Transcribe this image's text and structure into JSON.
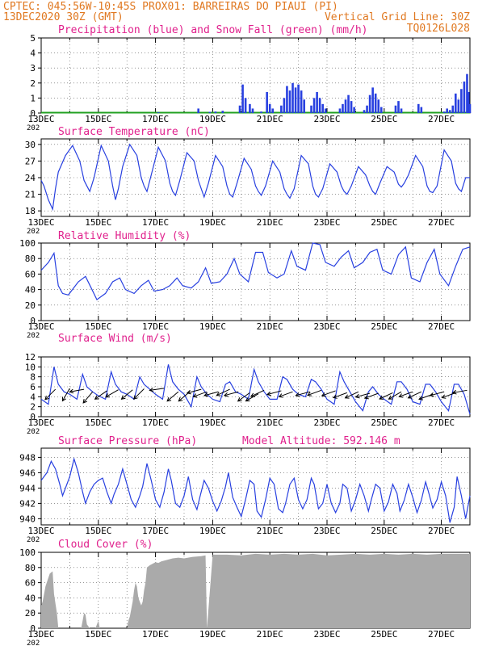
{
  "header": {
    "line1": "CPTEC:   045:56W-10:45S  PROX01: BARREIRAS DO PIAUI (PI)",
    "line2_left": "13DEC2020 30Z (GMT)",
    "line2_right": "Vertical Grid Line: 30Z",
    "code": "TQ0126L028"
  },
  "colors": {
    "header": "#e07820",
    "title": "#e0208c",
    "line": "#2840e0",
    "precip": "#2840e0",
    "snow": "#20a020",
    "cloud": "#aaaaaa",
    "wind_arrow": "#000000"
  },
  "x_labels": [
    "13DEC",
    "15DEC",
    "17DEC",
    "19DEC",
    "21DEC",
    "23DEC",
    "25DEC",
    "27DEC"
  ],
  "x_sublabel": "202",
  "chart_data": [
    {
      "type": "bar",
      "title": "Precipitation (blue) and Snow Fall (green) (mm/h)",
      "ylim": [
        0,
        5
      ],
      "yticks": [
        0,
        1,
        2,
        3,
        4,
        5
      ],
      "xlim_days": [
        13,
        28
      ],
      "bars": [
        [
          17.1,
          0.05
        ],
        [
          18.5,
          0.3
        ],
        [
          18.9,
          0.08
        ],
        [
          19.1,
          0.1
        ],
        [
          19.35,
          0.15
        ],
        [
          19.95,
          0.5
        ],
        [
          20.05,
          1.9
        ],
        [
          20.15,
          1.0
        ],
        [
          20.3,
          0.6
        ],
        [
          20.4,
          0.3
        ],
        [
          20.7,
          0.1
        ],
        [
          20.9,
          1.4
        ],
        [
          21.0,
          0.6
        ],
        [
          21.1,
          0.3
        ],
        [
          21.4,
          0.5
        ],
        [
          21.5,
          1.0
        ],
        [
          21.6,
          1.8
        ],
        [
          21.7,
          1.5
        ],
        [
          21.8,
          2.0
        ],
        [
          21.9,
          1.7
        ],
        [
          22.0,
          1.9
        ],
        [
          22.1,
          1.5
        ],
        [
          22.2,
          0.9
        ],
        [
          22.45,
          0.5
        ],
        [
          22.55,
          1.0
        ],
        [
          22.65,
          1.4
        ],
        [
          22.75,
          1.0
        ],
        [
          22.85,
          0.6
        ],
        [
          22.95,
          0.3
        ],
        [
          23.45,
          0.3
        ],
        [
          23.55,
          0.6
        ],
        [
          23.65,
          0.9
        ],
        [
          23.75,
          1.2
        ],
        [
          23.85,
          0.8
        ],
        [
          23.95,
          0.4
        ],
        [
          24.3,
          0.2
        ],
        [
          24.4,
          0.5
        ],
        [
          24.5,
          1.2
        ],
        [
          24.6,
          1.7
        ],
        [
          24.7,
          1.3
        ],
        [
          24.8,
          0.9
        ],
        [
          24.9,
          0.4
        ],
        [
          25.4,
          0.5
        ],
        [
          25.5,
          0.8
        ],
        [
          25.6,
          0.3
        ],
        [
          26.2,
          0.6
        ],
        [
          26.3,
          0.4
        ],
        [
          27.1,
          0.1
        ],
        [
          27.2,
          0.3
        ],
        [
          27.3,
          0.2
        ],
        [
          27.4,
          0.5
        ],
        [
          27.5,
          1.3
        ],
        [
          27.6,
          0.9
        ],
        [
          27.7,
          1.6
        ],
        [
          27.8,
          2.1
        ],
        [
          27.9,
          2.6
        ],
        [
          27.95,
          1.4
        ],
        [
          28.0,
          0.6
        ]
      ]
    },
    {
      "type": "line",
      "title": "Surface Temperature (nC)",
      "ylim": [
        17,
        31
      ],
      "yticks": [
        18,
        21,
        24,
        27,
        30
      ],
      "xlim_days": [
        13,
        28
      ],
      "x": [
        13.0,
        13.1,
        13.25,
        13.4,
        13.5,
        13.6,
        13.85,
        14.1,
        14.35,
        14.5,
        14.6,
        14.7,
        14.85,
        15.1,
        15.35,
        15.5,
        15.6,
        15.7,
        15.85,
        16.1,
        16.35,
        16.5,
        16.6,
        16.7,
        16.85,
        17.1,
        17.35,
        17.5,
        17.6,
        17.7,
        17.85,
        18.1,
        18.35,
        18.5,
        18.6,
        18.7,
        18.85,
        19.1,
        19.35,
        19.5,
        19.6,
        19.7,
        19.85,
        20.1,
        20.35,
        20.5,
        20.6,
        20.7,
        20.85,
        21.1,
        21.35,
        21.5,
        21.6,
        21.7,
        21.85,
        22.1,
        22.35,
        22.5,
        22.6,
        22.7,
        22.85,
        23.1,
        23.35,
        23.5,
        23.6,
        23.7,
        23.85,
        24.1,
        24.35,
        24.5,
        24.6,
        24.7,
        24.85,
        25.1,
        25.35,
        25.5,
        25.6,
        25.7,
        25.85,
        26.1,
        26.35,
        26.5,
        26.6,
        26.7,
        26.85,
        27.1,
        27.35,
        27.5,
        27.6,
        27.7,
        27.85,
        28.0
      ],
      "y": [
        23.5,
        22.5,
        20,
        18.3,
        22,
        25,
        28,
        29.8,
        27,
        23.5,
        22.5,
        21.5,
        24,
        29.8,
        27,
        22.5,
        20,
        22,
        26,
        30,
        28,
        24,
        22.5,
        21.5,
        24.5,
        29.5,
        27,
        23,
        21.5,
        20.8,
        23.5,
        28.5,
        27,
        23.5,
        22,
        20.5,
        23,
        28,
        26,
        22.5,
        21,
        20.5,
        23,
        27.5,
        25.5,
        22.5,
        21.5,
        20.8,
        22.5,
        27,
        25,
        22,
        21,
        20.3,
        22,
        28,
        26.5,
        22.5,
        21,
        20.5,
        22,
        26.5,
        25,
        22.5,
        21.5,
        21,
        22.5,
        26,
        24.5,
        22.5,
        21.5,
        21,
        23,
        26,
        25,
        22.8,
        22.3,
        23,
        24.5,
        28,
        26,
        22.5,
        21.5,
        21.3,
        22.5,
        29,
        27,
        23,
        22,
        21.5,
        24,
        24
      ]
    },
    {
      "type": "line",
      "title": "Relative Humidity (%)",
      "ylim": [
        0,
        100
      ],
      "yticks": [
        0,
        20,
        40,
        60,
        80,
        100
      ],
      "xlim_days": [
        13,
        28
      ],
      "x": [
        13.0,
        13.25,
        13.45,
        13.6,
        13.75,
        13.95,
        14.3,
        14.55,
        14.75,
        14.95,
        15.25,
        15.5,
        15.75,
        15.95,
        16.25,
        16.5,
        16.75,
        16.95,
        17.25,
        17.5,
        17.75,
        17.95,
        18.25,
        18.5,
        18.75,
        18.95,
        19.25,
        19.5,
        19.75,
        19.95,
        20.25,
        20.5,
        20.75,
        20.95,
        21.25,
        21.5,
        21.75,
        21.95,
        22.25,
        22.5,
        22.75,
        22.95,
        23.25,
        23.5,
        23.75,
        23.95,
        24.25,
        24.5,
        24.75,
        24.95,
        25.25,
        25.5,
        25.75,
        25.95,
        26.25,
        26.5,
        26.75,
        26.95,
        27.25,
        27.5,
        27.75,
        28.0
      ],
      "y": [
        65,
        75,
        87,
        45,
        35,
        33,
        50,
        57,
        42,
        27,
        35,
        50,
        55,
        40,
        35,
        45,
        52,
        38,
        40,
        45,
        55,
        45,
        42,
        50,
        68,
        48,
        50,
        60,
        80,
        60,
        50,
        88,
        88,
        62,
        55,
        60,
        90,
        70,
        65,
        100,
        98,
        75,
        70,
        82,
        90,
        68,
        75,
        88,
        92,
        65,
        60,
        85,
        95,
        55,
        50,
        75,
        92,
        60,
        45,
        70,
        92,
        95
      ]
    },
    {
      "type": "line",
      "title": "Surface Wind (m/s)",
      "ylim": [
        0,
        12
      ],
      "yticks": [
        0,
        2,
        4,
        6,
        8,
        10,
        12
      ],
      "xlim_days": [
        13,
        28
      ],
      "x": [
        13.0,
        13.25,
        13.45,
        13.6,
        13.8,
        14.0,
        14.25,
        14.45,
        14.6,
        14.8,
        15.0,
        15.25,
        15.45,
        15.6,
        15.8,
        16.0,
        16.25,
        16.45,
        16.6,
        16.8,
        17.0,
        17.25,
        17.45,
        17.6,
        17.8,
        18.0,
        18.25,
        18.45,
        18.6,
        18.8,
        19.0,
        19.25,
        19.45,
        19.6,
        19.8,
        20.0,
        20.25,
        20.45,
        20.6,
        20.8,
        21.0,
        21.25,
        21.45,
        21.6,
        21.8,
        22.0,
        22.25,
        22.45,
        22.6,
        22.8,
        23.0,
        23.25,
        23.45,
        23.6,
        23.8,
        24.0,
        24.25,
        24.45,
        24.6,
        24.8,
        25.0,
        25.25,
        25.45,
        25.6,
        25.8,
        26.0,
        26.25,
        26.45,
        26.6,
        26.8,
        27.0,
        27.25,
        27.45,
        27.6,
        27.8,
        28.0
      ],
      "y": [
        3.5,
        2.5,
        10,
        6.5,
        5,
        4.5,
        3.5,
        8.5,
        6,
        5,
        4.2,
        3.5,
        9,
        6.5,
        5,
        4.5,
        3.5,
        8,
        6.5,
        5.5,
        4.5,
        3.5,
        10.5,
        7,
        5.5,
        4.5,
        2,
        8,
        6,
        4.5,
        3.5,
        3,
        6.5,
        7,
        5,
        4.5,
        3.5,
        9.5,
        7,
        5,
        3.5,
        3.5,
        8,
        7.5,
        5.5,
        4.5,
        4,
        7.5,
        7,
        5.5,
        3.5,
        2.5,
        9,
        7,
        5,
        3,
        1.2,
        5,
        6,
        4.5,
        3.5,
        2.5,
        7,
        7,
        5.5,
        3,
        2.5,
        6.5,
        6.5,
        5,
        3,
        1.2,
        6.5,
        6.5,
        4.5,
        0.5
      ],
      "vectors": [
        [
          13.5,
          5.5,
          45
        ],
        [
          14.0,
          5.7,
          60
        ],
        [
          14.5,
          5.5,
          10
        ],
        [
          14.8,
          5.0,
          50
        ],
        [
          15.3,
          5.2,
          35
        ],
        [
          15.7,
          5.4,
          30
        ],
        [
          16.2,
          5.4,
          40
        ],
        [
          16.6,
          5.6,
          45
        ],
        [
          17.3,
          5.7,
          8
        ],
        [
          17.8,
          5.0,
          40
        ],
        [
          18.2,
          5.0,
          40
        ],
        [
          18.6,
          5.5,
          15
        ],
        [
          18.8,
          5.0,
          20
        ],
        [
          19.2,
          5.0,
          15
        ],
        [
          19.6,
          5.5,
          25
        ],
        [
          19.9,
          5.0,
          15
        ],
        [
          20.3,
          4.8,
          35
        ],
        [
          20.6,
          4.6,
          30
        ],
        [
          20.8,
          5.3,
          25
        ],
        [
          21.4,
          5.2,
          15
        ],
        [
          21.8,
          5.0,
          20
        ],
        [
          22.4,
          5.0,
          15
        ],
        [
          22.8,
          5.3,
          20
        ],
        [
          23.3,
          5.2,
          20
        ],
        [
          23.7,
          4.8,
          20
        ],
        [
          24.1,
          5.0,
          25
        ],
        [
          24.5,
          4.7,
          15
        ],
        [
          24.8,
          4.7,
          20
        ],
        [
          25.3,
          4.8,
          25
        ],
        [
          25.6,
          5.0,
          30
        ],
        [
          26.0,
          5.0,
          20
        ],
        [
          26.3,
          5.0,
          25
        ],
        [
          26.7,
          4.5,
          20
        ],
        [
          27.1,
          5.0,
          15
        ],
        [
          27.5,
          4.8,
          20
        ],
        [
          27.9,
          5.3,
          10
        ]
      ]
    },
    {
      "type": "line",
      "title": "Surface Pressure (hPa)",
      "subtitle": "Model Altitude: 592.146 m",
      "ylim": [
        939.2,
        949.2
      ],
      "yticks": [
        940,
        942,
        944,
        946,
        948
      ],
      "xlim_days": [
        13,
        28
      ],
      "x": [
        13.0,
        13.2,
        13.35,
        13.5,
        13.65,
        13.75,
        13.85,
        14.0,
        14.15,
        14.3,
        14.45,
        14.55,
        14.7,
        14.85,
        15.0,
        15.15,
        15.3,
        15.45,
        15.55,
        15.7,
        15.85,
        16.0,
        16.15,
        16.3,
        16.45,
        16.55,
        16.7,
        16.85,
        17.0,
        17.15,
        17.3,
        17.45,
        17.55,
        17.7,
        17.85,
        18.0,
        18.15,
        18.3,
        18.45,
        18.55,
        18.7,
        18.85,
        19.0,
        19.15,
        19.3,
        19.45,
        19.55,
        19.7,
        19.85,
        20.0,
        20.15,
        20.3,
        20.45,
        20.55,
        20.7,
        20.85,
        21.0,
        21.15,
        21.3,
        21.45,
        21.55,
        21.7,
        21.85,
        22.0,
        22.15,
        22.3,
        22.45,
        22.55,
        22.7,
        22.85,
        23.0,
        23.15,
        23.3,
        23.45,
        23.55,
        23.7,
        23.85,
        24.0,
        24.15,
        24.3,
        24.45,
        24.55,
        24.7,
        24.85,
        25.0,
        25.15,
        25.3,
        25.45,
        25.55,
        25.7,
        25.85,
        26.0,
        26.15,
        26.3,
        26.45,
        26.55,
        26.7,
        26.85,
        27.0,
        27.15,
        27.3,
        27.45,
        27.55,
        27.7,
        27.85,
        28.0
      ],
      "y": [
        945,
        946,
        947.5,
        946.5,
        944.5,
        943,
        944,
        945.5,
        947.8,
        946,
        943.5,
        942,
        943.5,
        944.5,
        945,
        945.3,
        943.5,
        942,
        943.2,
        944.5,
        946.5,
        944.5,
        942.5,
        941.5,
        943,
        944.2,
        947.2,
        945,
        942.5,
        941.5,
        943.5,
        946.5,
        945,
        942,
        941.5,
        943,
        945.5,
        942.5,
        941.2,
        942.8,
        945,
        944,
        942.3,
        941,
        942.3,
        944.2,
        946,
        942.8,
        941.5,
        940.3,
        942.5,
        945,
        944.5,
        941,
        940.2,
        942.5,
        945.3,
        944.5,
        941.3,
        940.8,
        942,
        944.5,
        945.3,
        942.5,
        941.3,
        942.5,
        945.3,
        944.5,
        941.3,
        942,
        944.5,
        942,
        940.8,
        942,
        944.5,
        944,
        941,
        942.5,
        944.5,
        943,
        941,
        942.5,
        944.5,
        944,
        941,
        942.2,
        944.5,
        943.3,
        941,
        942.4,
        944.5,
        942.8,
        940.8,
        942.4,
        944.8,
        943.5,
        941.4,
        942.5,
        944.8,
        943,
        939.5,
        941.5,
        945.5,
        943,
        940,
        943
      ]
    },
    {
      "type": "area",
      "title": "Cloud Cover (%)",
      "ylim": [
        0,
        100
      ],
      "yticks": [
        0,
        20,
        40,
        60,
        80,
        100
      ],
      "xlim_days": [
        13,
        28
      ],
      "x": [
        13.0,
        13.05,
        13.15,
        13.3,
        13.4,
        13.45,
        13.55,
        13.6,
        13.8,
        14.0,
        14.2,
        14.3,
        14.4,
        14.5,
        14.55,
        14.6,
        14.7,
        14.8,
        14.9,
        15.0,
        15.05,
        15.15,
        15.25,
        15.3,
        15.4,
        15.5,
        15.6,
        15.7,
        15.8,
        15.9,
        16.0,
        16.05,
        16.1,
        16.15,
        16.2,
        16.25,
        16.3,
        16.35,
        16.4,
        16.45,
        16.5,
        16.55,
        16.6,
        16.65,
        16.7,
        16.8,
        16.9,
        17.0,
        17.1,
        17.2,
        17.4,
        17.6,
        17.8,
        18.0,
        18.3,
        18.6,
        18.75,
        18.8,
        19.0,
        19.5,
        20.0,
        20.5,
        21.0,
        21.5,
        22.0,
        22.5,
        23.0,
        23.5,
        24.0,
        24.5,
        25.0,
        25.5,
        26.0,
        26.5,
        27.0,
        27.5,
        28.0
      ],
      "y": [
        30,
        35,
        55,
        72,
        75,
        45,
        20,
        0,
        0,
        0,
        0,
        0,
        0,
        20,
        18,
        5,
        0,
        0,
        0,
        10,
        0,
        0,
        0,
        0,
        0,
        0,
        0,
        0,
        0,
        0,
        0,
        10,
        15,
        25,
        35,
        50,
        60,
        55,
        40,
        35,
        30,
        35,
        50,
        60,
        80,
        83,
        85,
        87,
        86,
        88,
        90,
        92,
        93,
        92,
        94,
        95,
        96,
        0,
        97,
        97,
        96,
        98,
        97,
        98,
        97,
        98,
        96,
        97,
        98,
        97,
        98,
        97,
        98,
        97,
        98,
        98,
        98
      ]
    }
  ]
}
